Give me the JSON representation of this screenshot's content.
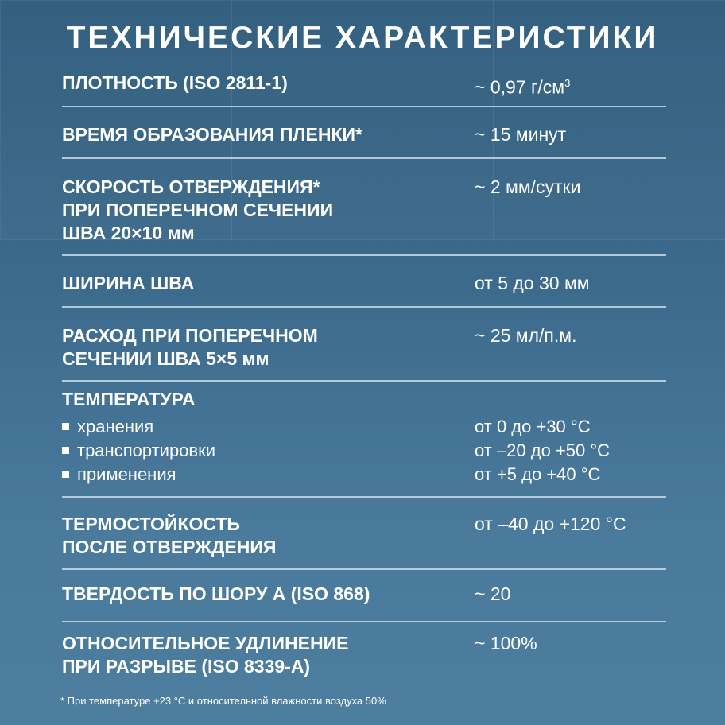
{
  "title": "ТЕХНИЧЕСКИЕ ХАРАКТЕРИСТИКИ",
  "rows": [
    {
      "label": "ПЛОТНОСТЬ (ISO 2811-1)",
      "value": "~ 0,97 г/см",
      "value_sup": "3"
    },
    {
      "label": "ВРЕМЯ ОБРАЗОВАНИЯ ПЛЕНКИ*",
      "value": "~ 15 минут"
    },
    {
      "label_lines": [
        "СКОРОСТЬ ОТВЕРЖДЕНИЯ*",
        "ПРИ ПОПЕРЕЧНОМ СЕЧЕНИИ",
        "ШВА 20×10 мм"
      ],
      "value": "~ 2 мм/сутки"
    },
    {
      "label": "ШИРИНА ШВА",
      "value": "от 5 до 30 мм"
    },
    {
      "label_lines": [
        "РАСХОД ПРИ ПОПЕРЕЧНОМ",
        "СЕЧЕНИИ ШВА 5×5 мм"
      ],
      "value": "~ 25 мл/п.м."
    },
    {
      "label": "ТЕМПЕРАТУРА",
      "items": [
        {
          "label": "хранения",
          "value": "от 0 до +30 °С"
        },
        {
          "label": "транспортировки",
          "value": "от –20 до +50 °С"
        },
        {
          "label": "применения",
          "value": "от +5 до +40 °С"
        }
      ]
    },
    {
      "label_lines": [
        "ТЕРМОСТОЙКОСТЬ",
        "ПОСЛЕ ОТВЕРЖДЕНИЯ"
      ],
      "value": "от –40 до +120 °С"
    },
    {
      "label": "ТВЕРДОСТЬ ПО ШОРУ А (ISO 868)",
      "value": "~ 20"
    },
    {
      "label_lines": [
        "ОТНОСИТЕЛЬНОЕ УДЛИНЕНИЕ",
        "ПРИ РАЗРЫВЕ (ISO 8339-A)"
      ],
      "value": "~ 100%"
    }
  ],
  "footnote": "* При температуре +23 °С и относительной влажности воздуха 50%"
}
